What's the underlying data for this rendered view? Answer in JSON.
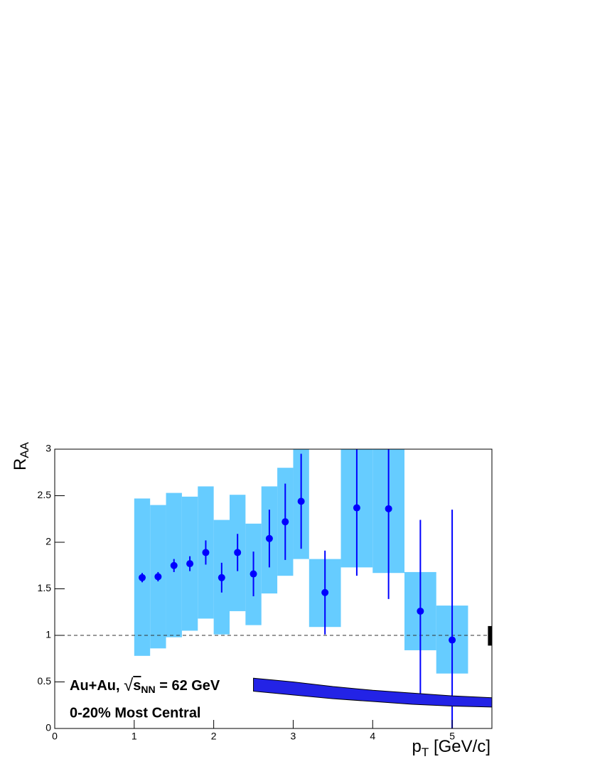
{
  "chart_data": {
    "type": "errorbar",
    "ylabel": {
      "main": "R",
      "sub": "AA"
    },
    "xlabel": {
      "main": "p",
      "sub": "T",
      "rest": " [GeV/c]"
    },
    "annotation": {
      "system": "Au+Au, ",
      "root": "s",
      "root_sub": "NN",
      "energy": " = 62 GeV",
      "centrality": "0-20% Most Central"
    },
    "xlim": [
      0,
      5.5
    ],
    "ylim": [
      0,
      3
    ],
    "xticks": [
      0,
      1,
      2,
      3,
      4,
      5
    ],
    "yticks": [
      0,
      0.5,
      1,
      1.5,
      2,
      2.5,
      3
    ],
    "reference_line": 1,
    "series": [
      {
        "color": "#0000ff",
        "sys_color": "#66ccff",
        "x": [
          1.1,
          1.3,
          1.5,
          1.7,
          1.9,
          2.1,
          2.3,
          2.5,
          2.7,
          2.9,
          3.1,
          3.4,
          3.8,
          4.2,
          4.6,
          5.0
        ],
        "values": [
          1.62,
          1.63,
          1.75,
          1.77,
          1.89,
          1.62,
          1.89,
          1.66,
          2.04,
          2.22,
          2.44,
          1.46,
          2.37,
          2.36,
          1.26,
          0.95
        ],
        "errors": [
          0.05,
          0.05,
          0.07,
          0.08,
          0.13,
          0.16,
          0.2,
          0.24,
          0.31,
          0.41,
          0.51,
          0.45,
          0.73,
          0.97,
          0.98,
          1.4
        ],
        "sys_x_low": [
          1.0,
          1.2,
          1.4,
          1.6,
          1.8,
          2.0,
          2.2,
          2.4,
          2.6,
          2.8,
          3.0,
          3.2,
          3.6,
          4.0,
          4.4,
          4.8
        ],
        "sys_x_high": [
          1.2,
          1.4,
          1.6,
          1.8,
          2.0,
          2.2,
          2.4,
          2.6,
          2.8,
          3.0,
          3.2,
          3.6,
          4.0,
          4.4,
          4.8,
          5.2
        ],
        "sys_low": [
          0.78,
          0.86,
          0.98,
          1.05,
          1.18,
          1.01,
          1.26,
          1.11,
          1.45,
          1.64,
          1.82,
          1.09,
          1.73,
          1.67,
          0.84,
          0.59
        ],
        "sys_high": [
          2.47,
          2.4,
          2.53,
          2.49,
          2.6,
          2.24,
          2.51,
          2.2,
          2.6,
          2.8,
          3.05,
          1.82,
          3.3,
          3.3,
          1.68,
          1.32
        ]
      }
    ],
    "norm_box": {
      "x": [
        5.45,
        5.55
      ],
      "low": 0.89,
      "high": 1.1,
      "color": "#000000"
    },
    "theory_band": {
      "color": "#2323e6",
      "x": [
        2.5,
        3.0,
        3.5,
        4.0,
        4.5,
        5.0,
        5.5
      ],
      "high": [
        0.54,
        0.5,
        0.45,
        0.41,
        0.38,
        0.35,
        0.33
      ],
      "low": [
        0.4,
        0.36,
        0.32,
        0.29,
        0.26,
        0.24,
        0.23
      ]
    }
  }
}
